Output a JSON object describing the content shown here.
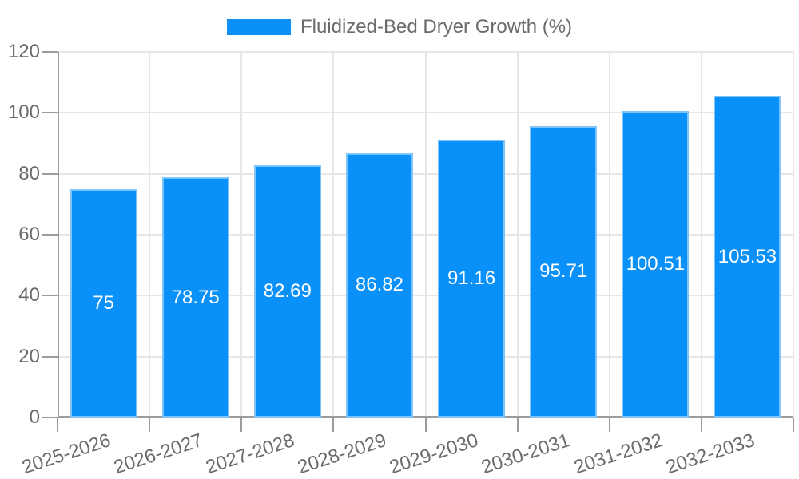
{
  "chart_data": {
    "type": "bar",
    "title": "",
    "categories": [
      "2025-2026",
      "2026-2027",
      "2027-2028",
      "2028-2029",
      "2029-2030",
      "2030-2031",
      "2031-2032",
      "2032-2033"
    ],
    "series": [
      {
        "name": "Fluidized-Bed Dryer Growth (%)",
        "values": [
          75,
          78.75,
          82.69,
          86.82,
          91.16,
          95.71,
          100.51,
          105.53
        ]
      }
    ],
    "value_labels": [
      "75",
      "78.75",
      "82.69",
      "86.82",
      "91.16",
      "95.71",
      "100.51",
      "105.53"
    ],
    "xlabel": "",
    "ylabel": "",
    "ylim": [
      0,
      120
    ],
    "yticks": [
      0,
      20,
      40,
      60,
      80,
      100,
      120
    ],
    "grid": true,
    "legend_position": "top",
    "colors": {
      "bar_fill": "#0a90f9",
      "bar_border": "#7cc4fa",
      "value_text": "#ffffff",
      "grid_line": "#e6e6e6",
      "axis_line": "#9c9c9c",
      "tick_text": "#6b6b6b",
      "legend_text": "#6b6b6b"
    }
  }
}
